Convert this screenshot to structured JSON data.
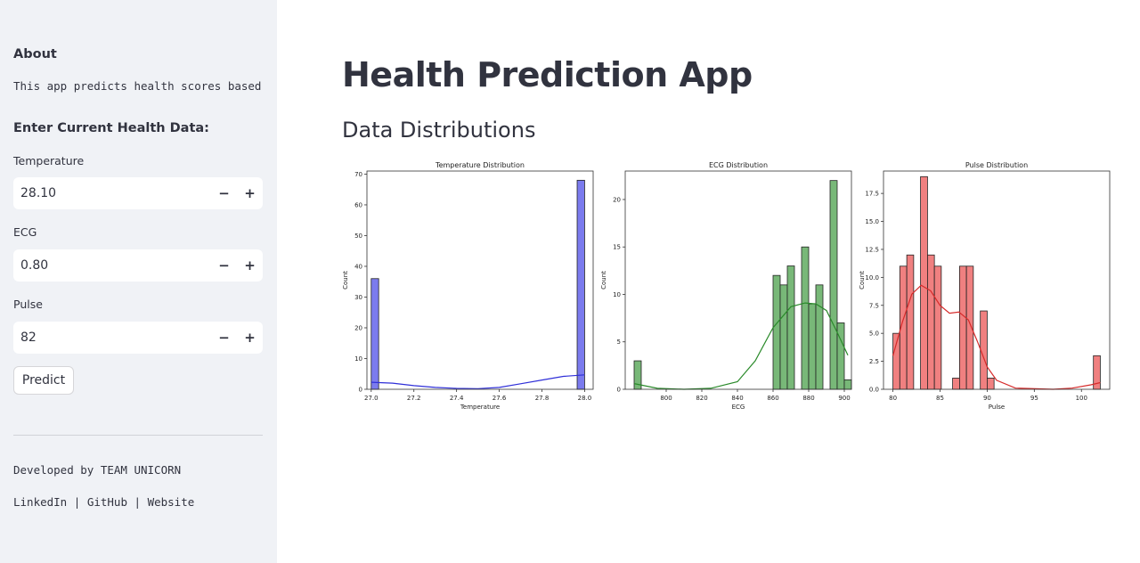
{
  "sidebar": {
    "about_heading": "About",
    "about_text": "This app predicts health scores based",
    "input_heading": "Enter Current Health Data:",
    "fields": [
      {
        "label": "Temperature",
        "value": "28.10"
      },
      {
        "label": "ECG",
        "value": "0.80"
      },
      {
        "label": "Pulse",
        "value": "82"
      }
    ],
    "stepper_minus": "−",
    "stepper_plus": "+",
    "predict_label": "Predict",
    "developed_by": "Developed by TEAM UNICORN",
    "links": [
      "LinkedIn",
      "GitHub",
      "Website"
    ],
    "link_separator": "|"
  },
  "main": {
    "title": "Health Prediction App",
    "subtitle": "Data Distributions"
  },
  "chart_data": [
    {
      "type": "bar",
      "title": "Temperature Distribution",
      "xlabel": "Temperature",
      "ylabel": "Count",
      "xlim": [
        26.98,
        28.04
      ],
      "ylim": [
        0,
        71
      ],
      "xticks": [
        27.0,
        27.2,
        27.4,
        27.6,
        27.8,
        28.0
      ],
      "xtick_labels": [
        "27.0",
        "27.2",
        "27.4",
        "27.6",
        "27.8",
        "28.0"
      ],
      "yticks": [
        0,
        10,
        20,
        30,
        40,
        50,
        60,
        70
      ],
      "bins": [
        [
          27.0,
          27.035,
          36
        ],
        [
          27.965,
          28.0,
          68
        ]
      ],
      "kde": [
        [
          27.0,
          2.3
        ],
        [
          27.1,
          2.0
        ],
        [
          27.2,
          1.2
        ],
        [
          27.3,
          0.6
        ],
        [
          27.4,
          0.3
        ],
        [
          27.5,
          0.2
        ],
        [
          27.6,
          0.6
        ],
        [
          27.7,
          1.8
        ],
        [
          27.8,
          3.0
        ],
        [
          27.9,
          4.2
        ],
        [
          28.0,
          4.7
        ]
      ],
      "bar_color": "#7b7bee",
      "line_color": "#2f2fd8"
    },
    {
      "type": "bar",
      "title": "ECG Distribution",
      "xlabel": "ECG",
      "ylabel": "Count",
      "xlim": [
        777,
        904
      ],
      "ylim": [
        0,
        23
      ],
      "xticks": [
        800,
        820,
        840,
        860,
        880,
        900
      ],
      "xtick_labels": [
        "800",
        "820",
        "840",
        "860",
        "880",
        "900"
      ],
      "yticks": [
        0,
        5,
        10,
        15,
        20
      ],
      "bins": [
        [
          782,
          786,
          3
        ],
        [
          860,
          864,
          12
        ],
        [
          864,
          868,
          11
        ],
        [
          868,
          872,
          13
        ],
        [
          872,
          876,
          0
        ],
        [
          876,
          880,
          15
        ],
        [
          880,
          884,
          9
        ],
        [
          884,
          888,
          11
        ],
        [
          888,
          892,
          0
        ],
        [
          892,
          896,
          22
        ],
        [
          896,
          900,
          7
        ],
        [
          900,
          904,
          1
        ]
      ],
      "kde": [
        [
          782,
          0.6
        ],
        [
          795,
          0.1
        ],
        [
          810,
          0.0
        ],
        [
          825,
          0.1
        ],
        [
          840,
          0.8
        ],
        [
          850,
          3.0
        ],
        [
          860,
          6.5
        ],
        [
          870,
          8.7
        ],
        [
          878,
          9.1
        ],
        [
          884,
          9.0
        ],
        [
          890,
          8.3
        ],
        [
          896,
          6.0
        ],
        [
          902,
          3.6
        ]
      ],
      "bar_color": "#78b878",
      "line_color": "#2a8a2a"
    },
    {
      "type": "bar",
      "title": "Pulse Distribution",
      "xlabel": "Pulse",
      "ylabel": "Count",
      "xlim": [
        79,
        103
      ],
      "ylim": [
        0,
        19.5
      ],
      "xticks": [
        80,
        85,
        90,
        95,
        100
      ],
      "xtick_labels": [
        "80",
        "85",
        "90",
        "95",
        "100"
      ],
      "yticks": [
        0,
        2.5,
        5.0,
        7.5,
        10.0,
        12.5,
        15.0,
        17.5
      ],
      "ytick_labels": [
        "0.0",
        "2.5",
        "5.0",
        "7.5",
        "10.0",
        "12.5",
        "15.0",
        "17.5"
      ],
      "bins": [
        [
          80,
          80.73,
          5
        ],
        [
          80.73,
          81.47,
          11
        ],
        [
          81.47,
          82.2,
          12
        ],
        [
          82.93,
          83.67,
          19
        ],
        [
          83.67,
          84.4,
          12
        ],
        [
          84.4,
          85.13,
          11
        ],
        [
          86.33,
          87.07,
          1
        ],
        [
          87.07,
          87.8,
          11
        ],
        [
          87.8,
          88.53,
          11
        ],
        [
          89.27,
          90.0,
          7
        ],
        [
          90.0,
          90.73,
          1
        ],
        [
          101.27,
          102.0,
          3
        ]
      ],
      "kde": [
        [
          80,
          3.0
        ],
        [
          81,
          6.0
        ],
        [
          82,
          8.5
        ],
        [
          83,
          9.3
        ],
        [
          84,
          8.8
        ],
        [
          85,
          7.5
        ],
        [
          86,
          6.8
        ],
        [
          87,
          6.9
        ],
        [
          88,
          6.2
        ],
        [
          89,
          4.2
        ],
        [
          90,
          2.0
        ],
        [
          91,
          0.8
        ],
        [
          93,
          0.1
        ],
        [
          97,
          0.0
        ],
        [
          99,
          0.1
        ],
        [
          101,
          0.4
        ],
        [
          102,
          0.6
        ]
      ],
      "bar_color": "#f08080",
      "line_color": "#d62a2a"
    }
  ]
}
